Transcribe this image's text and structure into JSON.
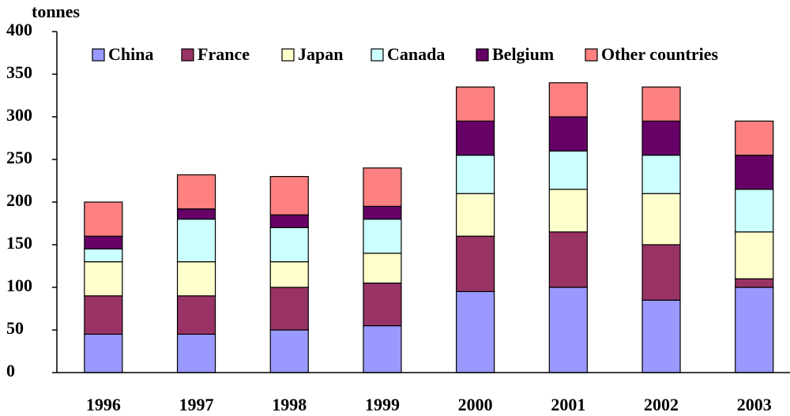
{
  "chart_data": {
    "type": "stacked_bar",
    "y_label": "tonnes",
    "categories": [
      "1996",
      "1997",
      "1998",
      "1999",
      "2000",
      "2001",
      "2002",
      "2003"
    ],
    "series": [
      {
        "name": "China",
        "color": "#9999ff",
        "values": [
          45,
          45,
          50,
          55,
          95,
          100,
          85,
          100
        ]
      },
      {
        "name": "France",
        "color": "#993366",
        "values": [
          45,
          45,
          50,
          50,
          65,
          65,
          65,
          10
        ]
      },
      {
        "name": "Japan",
        "color": "#ffffcc",
        "values": [
          40,
          40,
          30,
          35,
          50,
          50,
          60,
          55
        ]
      },
      {
        "name": "Canada",
        "color": "#ccffff",
        "values": [
          15,
          50,
          40,
          40,
          45,
          45,
          45,
          50
        ]
      },
      {
        "name": "Belgium",
        "color": "#660066",
        "values": [
          15,
          12,
          15,
          15,
          40,
          40,
          40,
          40
        ]
      },
      {
        "name": "Other countries",
        "color": "#ff8080",
        "values": [
          40,
          40,
          45,
          45,
          40,
          40,
          40,
          40
        ]
      }
    ],
    "ylim": [
      0,
      400
    ],
    "yticks": [
      0,
      50,
      100,
      150,
      200,
      250,
      300,
      350,
      400
    ],
    "legend": "top"
  }
}
